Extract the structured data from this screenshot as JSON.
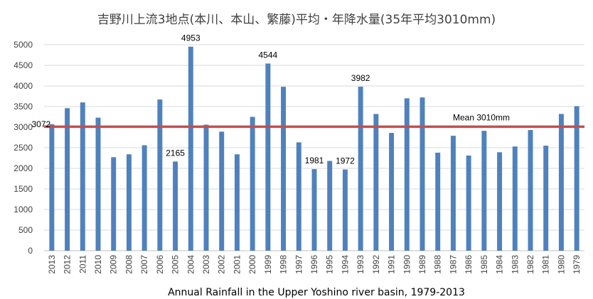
{
  "chart_data": {
    "type": "bar",
    "title": "吉野川上流3地点(本川、本山、繁藤)平均・年降水量(35年平均3010mm)",
    "xlabel": "Annual Rainfall in the Upper Yoshino river basin, 1979-2013",
    "ylabel": "",
    "ylim": [
      0,
      5000
    ],
    "yticks": [
      0,
      500,
      1000,
      1500,
      2000,
      2500,
      3000,
      3500,
      4000,
      4500,
      5000
    ],
    "grid": true,
    "categories": [
      "2013",
      "2012",
      "2011",
      "2010",
      "2009",
      "2008",
      "2007",
      "2006",
      "2005",
      "2004",
      "2003",
      "2002",
      "2001",
      "2000",
      "1999",
      "1998",
      "1997",
      "1996",
      "1995",
      "1994",
      "1993",
      "1992",
      "1991",
      "1990",
      "1989",
      "1988",
      "1987",
      "1986",
      "1985",
      "1984",
      "1983",
      "1982",
      "1981",
      "1980",
      "1979"
    ],
    "values": [
      3072,
      3460,
      3600,
      3230,
      2270,
      2340,
      2560,
      3670,
      2165,
      4953,
      3060,
      2890,
      2340,
      3250,
      4544,
      3980,
      2630,
      1981,
      2180,
      1972,
      3982,
      3320,
      2860,
      3700,
      3720,
      2380,
      2790,
      2310,
      2910,
      2390,
      2530,
      2930,
      2550,
      3320,
      3510
    ],
    "data_labels": [
      {
        "category": "2013",
        "text": "3072"
      },
      {
        "category": "2005",
        "text": "2165"
      },
      {
        "category": "2004",
        "text": "4953"
      },
      {
        "category": "1999",
        "text": "4544"
      },
      {
        "category": "1996",
        "text": "1981"
      },
      {
        "category": "1994",
        "text": "1972"
      },
      {
        "category": "1993",
        "text": "3982"
      }
    ],
    "mean_line": {
      "value": 3010,
      "label": "Mean 3010mm"
    },
    "colors": {
      "bar": "#4f81bd",
      "mean_line": "#c0504d",
      "grid": "#d9d9d9",
      "axis": "#bfbfbf"
    }
  }
}
